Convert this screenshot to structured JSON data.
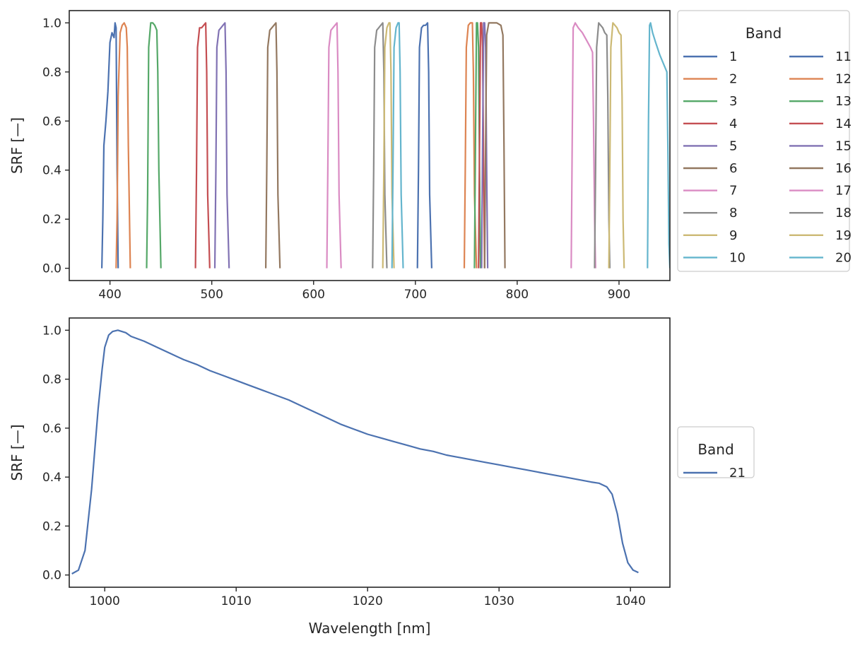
{
  "chart_data": [
    {
      "type": "line",
      "title": "",
      "xlabel": "",
      "ylabel": "SRF [—]",
      "xlim": [
        360,
        950
      ],
      "ylim": [
        -0.05,
        1.05
      ],
      "xticks": [
        400,
        500,
        600,
        700,
        800,
        900
      ],
      "yticks": [
        0.0,
        0.2,
        0.4,
        0.6,
        0.8,
        1.0
      ],
      "ytick_labels": [
        "0.0",
        "0.2",
        "0.4",
        "0.6",
        "0.8",
        "1.0"
      ],
      "grid": false,
      "legend": {
        "title": "Band",
        "placement": "outside-right-top",
        "columns": 2
      },
      "series": [
        {
          "name": "1",
          "color": "#4c72b0",
          "x": [
            392,
            393,
            394,
            396,
            398,
            400,
            402,
            404,
            405,
            406,
            407,
            408
          ],
          "y": [
            0.0,
            0.2,
            0.5,
            0.6,
            0.72,
            0.92,
            0.96,
            0.94,
            1.0,
            0.98,
            0.4,
            0.0
          ]
        },
        {
          "name": "2",
          "color": "#dd8452",
          "x": [
            406,
            407,
            408,
            410,
            412,
            414,
            416,
            417,
            418,
            420
          ],
          "y": [
            0.0,
            0.2,
            0.7,
            0.96,
            0.99,
            1.0,
            0.98,
            0.9,
            0.5,
            0.0
          ]
        },
        {
          "name": "3",
          "color": "#55a868",
          "x": [
            436,
            437,
            438,
            440,
            442,
            444,
            446,
            447,
            448,
            450
          ],
          "y": [
            0.0,
            0.3,
            0.9,
            1.0,
            1.0,
            0.99,
            0.97,
            0.8,
            0.4,
            0.0
          ]
        },
        {
          "name": "4",
          "color": "#c44e52",
          "x": [
            484,
            485,
            486,
            488,
            490,
            492,
            494,
            495,
            496,
            498
          ],
          "y": [
            0.0,
            0.4,
            0.9,
            0.98,
            0.98,
            0.99,
            1.0,
            0.8,
            0.3,
            0.0
          ]
        },
        {
          "name": "5",
          "color": "#8172b3",
          "x": [
            503,
            504,
            505,
            507,
            509,
            511,
            513,
            514,
            515,
            517
          ],
          "y": [
            0.0,
            0.4,
            0.9,
            0.97,
            0.98,
            0.99,
            1.0,
            0.8,
            0.3,
            0.0
          ]
        },
        {
          "name": "6",
          "color": "#937860",
          "x": [
            553,
            554,
            555,
            557,
            559,
            561,
            563,
            564,
            565,
            567
          ],
          "y": [
            0.0,
            0.4,
            0.9,
            0.97,
            0.98,
            0.99,
            1.0,
            0.8,
            0.3,
            0.0
          ]
        },
        {
          "name": "7",
          "color": "#da8bc3",
          "x": [
            613,
            614,
            615,
            617,
            619,
            621,
            623,
            624,
            625,
            627
          ],
          "y": [
            0.0,
            0.4,
            0.9,
            0.97,
            0.98,
            0.99,
            1.0,
            0.8,
            0.3,
            0.0
          ]
        },
        {
          "name": "8",
          "color": "#8c8c8c",
          "x": [
            658,
            659,
            660,
            662,
            664,
            666,
            668,
            669,
            670,
            672
          ],
          "y": [
            0.0,
            0.4,
            0.9,
            0.97,
            0.98,
            0.99,
            1.0,
            0.8,
            0.3,
            0.0
          ]
        },
        {
          "name": "9",
          "color": "#ccb974",
          "x": [
            668,
            669,
            670,
            672,
            673,
            674,
            675,
            676,
            677,
            679
          ],
          "y": [
            0.0,
            0.4,
            0.9,
            0.98,
            0.99,
            1.0,
            1.0,
            0.8,
            0.3,
            0.0
          ]
        },
        {
          "name": "10",
          "color": "#64b5cd",
          "x": [
            677,
            678,
            679,
            681,
            682,
            683,
            684,
            685,
            686,
            688
          ],
          "y": [
            0.0,
            0.4,
            0.9,
            0.98,
            0.99,
            1.0,
            1.0,
            0.8,
            0.3,
            0.0
          ]
        },
        {
          "name": "11",
          "color": "#4c72b0",
          "x": [
            702,
            703,
            704,
            706,
            708,
            710,
            712,
            713,
            714,
            716
          ],
          "y": [
            0.0,
            0.4,
            0.9,
            0.98,
            0.99,
            0.99,
            1.0,
            0.8,
            0.3,
            0.0
          ]
        },
        {
          "name": "12",
          "color": "#dd8452",
          "x": [
            748,
            749,
            750,
            752,
            754,
            756,
            757,
            758,
            760
          ],
          "y": [
            0.0,
            0.4,
            0.9,
            0.99,
            1.0,
            1.0,
            0.8,
            0.3,
            0.0
          ]
        },
        {
          "name": "13",
          "color": "#55a868",
          "x": [
            758,
            759,
            760,
            761,
            762,
            763,
            764
          ],
          "y": [
            0.0,
            0.5,
            1.0,
            1.0,
            0.9,
            0.4,
            0.0
          ]
        },
        {
          "name": "14",
          "color": "#c44e52",
          "x": [
            762,
            763,
            764,
            765,
            766,
            767,
            768
          ],
          "y": [
            0.0,
            0.5,
            1.0,
            1.0,
            0.9,
            0.4,
            0.0
          ]
        },
        {
          "name": "15",
          "color": "#8172b3",
          "x": [
            765,
            766,
            767,
            768,
            769,
            770,
            771
          ],
          "y": [
            0.0,
            0.5,
            1.0,
            1.0,
            0.9,
            0.4,
            0.0
          ]
        },
        {
          "name": "16",
          "color": "#937860",
          "x": [
            768,
            769,
            770,
            772,
            776,
            780,
            784,
            786,
            787,
            788
          ],
          "y": [
            0.0,
            0.5,
            0.95,
            1.0,
            1.0,
            1.0,
            0.99,
            0.95,
            0.5,
            0.0
          ]
        },
        {
          "name": "17",
          "color": "#da8bc3",
          "x": [
            853,
            854,
            855,
            857,
            860,
            864,
            868,
            872,
            874,
            875,
            876,
            877
          ],
          "y": [
            0.0,
            0.5,
            0.98,
            1.0,
            0.98,
            0.96,
            0.93,
            0.9,
            0.88,
            0.6,
            0.2,
            0.0
          ]
        },
        {
          "name": "18",
          "color": "#8c8c8c",
          "x": [
            876,
            877,
            878,
            880,
            882,
            884,
            886,
            888,
            889,
            890,
            891
          ],
          "y": [
            0.0,
            0.4,
            0.9,
            1.0,
            0.99,
            0.98,
            0.96,
            0.95,
            0.7,
            0.2,
            0.0
          ]
        },
        {
          "name": "19",
          "color": "#ccb974",
          "x": [
            890,
            891,
            892,
            894,
            896,
            898,
            900,
            902,
            903,
            904,
            905
          ],
          "y": [
            0.0,
            0.4,
            0.9,
            1.0,
            0.99,
            0.98,
            0.96,
            0.95,
            0.7,
            0.2,
            0.0
          ]
        },
        {
          "name": "20",
          "color": "#64b5cd",
          "x": [
            928,
            929,
            930,
            931,
            933,
            936,
            940,
            944,
            947,
            948,
            949,
            950
          ],
          "y": [
            0.0,
            0.6,
            0.99,
            1.0,
            0.96,
            0.92,
            0.87,
            0.83,
            0.8,
            0.5,
            0.1,
            0.0
          ]
        }
      ]
    },
    {
      "type": "line",
      "title": "",
      "xlabel": "Wavelength [nm]",
      "ylabel": "SRF [—]",
      "xlim": [
        997.3,
        1043
      ],
      "ylim": [
        -0.05,
        1.05
      ],
      "xticks": [
        1000,
        1010,
        1020,
        1030,
        1040
      ],
      "yticks": [
        0.0,
        0.2,
        0.4,
        0.6,
        0.8,
        1.0
      ],
      "ytick_labels": [
        "0.0",
        "0.2",
        "0.4",
        "0.6",
        "0.8",
        "1.0"
      ],
      "grid": false,
      "legend": {
        "title": "Band",
        "placement": "outside-right-center",
        "columns": 1
      },
      "series": [
        {
          "name": "21",
          "color": "#4c72b0",
          "x": [
            997.5,
            998.0,
            998.5,
            999.0,
            999.5,
            999.8,
            1000.0,
            1000.3,
            1000.6,
            1001.0,
            1001.3,
            1001.6,
            1002.0,
            1003.0,
            1004.0,
            1005.0,
            1006.0,
            1007.0,
            1008.0,
            1009.0,
            1010.0,
            1011.0,
            1012.0,
            1013.0,
            1014.0,
            1015.0,
            1016.0,
            1017.0,
            1018.0,
            1019.0,
            1020.0,
            1021.0,
            1022.0,
            1023.0,
            1024.0,
            1025.0,
            1026.0,
            1027.0,
            1028.0,
            1029.0,
            1030.0,
            1031.0,
            1032.0,
            1033.0,
            1034.0,
            1035.0,
            1036.0,
            1037.0,
            1037.6,
            1038.2,
            1038.6,
            1039.0,
            1039.4,
            1039.8,
            1040.2,
            1040.6
          ],
          "y": [
            0.005,
            0.02,
            0.1,
            0.35,
            0.68,
            0.84,
            0.93,
            0.98,
            0.995,
            1.0,
            0.995,
            0.99,
            0.975,
            0.955,
            0.93,
            0.905,
            0.88,
            0.86,
            0.835,
            0.815,
            0.795,
            0.775,
            0.755,
            0.735,
            0.715,
            0.69,
            0.665,
            0.64,
            0.615,
            0.595,
            0.575,
            0.56,
            0.545,
            0.53,
            0.515,
            0.505,
            0.49,
            0.48,
            0.47,
            0.46,
            0.45,
            0.44,
            0.43,
            0.42,
            0.41,
            0.4,
            0.39,
            0.38,
            0.375,
            0.36,
            0.33,
            0.25,
            0.13,
            0.05,
            0.02,
            0.01
          ]
        }
      ]
    }
  ]
}
